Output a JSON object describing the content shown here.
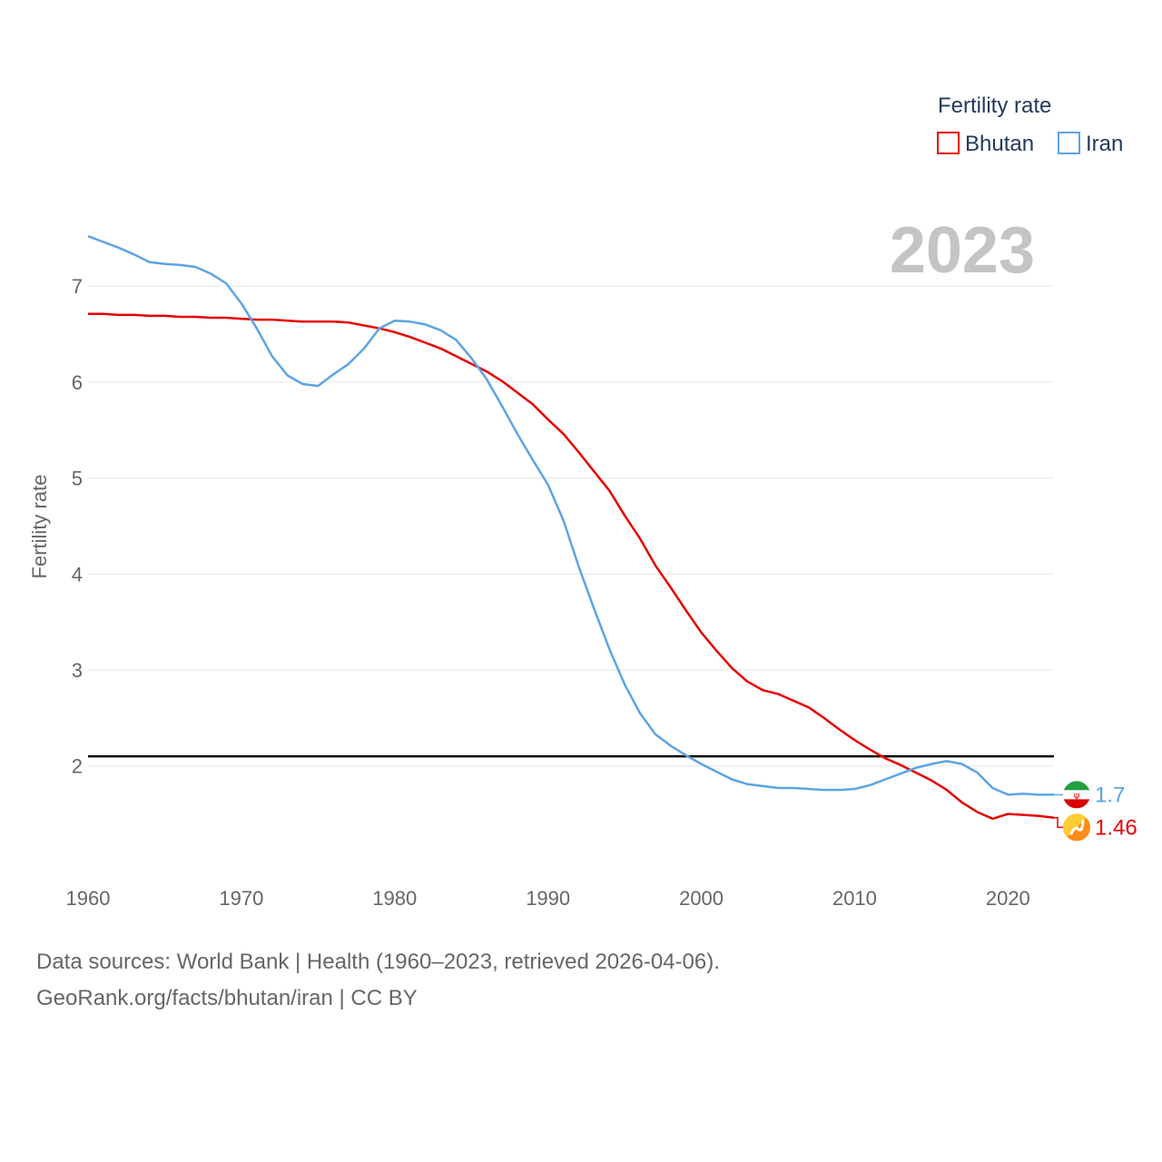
{
  "chart_data": {
    "type": "line",
    "title": "Fertility rate",
    "year_label": "2023",
    "xlabel": "",
    "ylabel": "Fertility rate",
    "xlim": [
      1960,
      2023
    ],
    "ylim": [
      0.9,
      7.9
    ],
    "x_ticks": [
      1960,
      1970,
      1980,
      1990,
      2000,
      2010,
      2020
    ],
    "y_ticks": [
      2,
      3,
      4,
      5,
      6,
      7
    ],
    "reference_line": 2.1,
    "grid": true,
    "legend_position": "top-right",
    "x": [
      1960,
      1961,
      1962,
      1963,
      1964,
      1965,
      1966,
      1967,
      1968,
      1969,
      1970,
      1971,
      1972,
      1973,
      1974,
      1975,
      1976,
      1977,
      1978,
      1979,
      1980,
      1981,
      1982,
      1983,
      1984,
      1985,
      1986,
      1987,
      1988,
      1989,
      1990,
      1991,
      1992,
      1993,
      1994,
      1995,
      1996,
      1997,
      1998,
      1999,
      2000,
      2001,
      2002,
      2003,
      2004,
      2005,
      2006,
      2007,
      2008,
      2009,
      2010,
      2011,
      2012,
      2013,
      2014,
      2015,
      2016,
      2017,
      2018,
      2019,
      2020,
      2021,
      2022,
      2023
    ],
    "series": [
      {
        "name": "Bhutan",
        "color": "#e60000",
        "end_label": "1.46",
        "flag_icon": "bhutan-flag-icon",
        "values": [
          6.71,
          6.71,
          6.7,
          6.7,
          6.69,
          6.69,
          6.68,
          6.68,
          6.67,
          6.67,
          6.66,
          6.65,
          6.65,
          6.64,
          6.63,
          6.63,
          6.63,
          6.62,
          6.59,
          6.56,
          6.52,
          6.47,
          6.41,
          6.35,
          6.27,
          6.19,
          6.11,
          6.01,
          5.89,
          5.77,
          5.61,
          5.46,
          5.27,
          5.07,
          4.87,
          4.61,
          4.37,
          4.09,
          3.86,
          3.62,
          3.39,
          3.2,
          3.02,
          2.88,
          2.79,
          2.75,
          2.68,
          2.61,
          2.5,
          2.38,
          2.27,
          2.17,
          2.08,
          2.01,
          1.93,
          1.85,
          1.75,
          1.62,
          1.52,
          1.45,
          1.5,
          1.49,
          1.48,
          1.46
        ]
      },
      {
        "name": "Iran",
        "color": "#5da3e6",
        "end_label": "1.7",
        "flag_icon": "iran-flag-icon",
        "values": [
          7.52,
          7.46,
          7.4,
          7.33,
          7.25,
          7.23,
          7.22,
          7.2,
          7.13,
          7.03,
          6.82,
          6.56,
          6.27,
          6.07,
          5.98,
          5.96,
          6.08,
          6.19,
          6.35,
          6.56,
          6.64,
          6.63,
          6.6,
          6.54,
          6.44,
          6.25,
          6.03,
          5.75,
          5.46,
          5.19,
          4.93,
          4.56,
          4.08,
          3.64,
          3.22,
          2.85,
          2.55,
          2.33,
          2.21,
          2.11,
          2.02,
          1.94,
          1.86,
          1.81,
          1.79,
          1.77,
          1.77,
          1.76,
          1.75,
          1.75,
          1.76,
          1.8,
          1.86,
          1.92,
          1.98,
          2.02,
          2.05,
          2.02,
          1.93,
          1.77,
          1.7,
          1.71,
          1.7,
          1.7
        ]
      }
    ]
  },
  "source": {
    "line1": "Data sources: World Bank | Health (1960–2023, retrieved 2026-04-06).",
    "line2": "GeoRank.org/facts/bhutan/iran | CC BY"
  }
}
